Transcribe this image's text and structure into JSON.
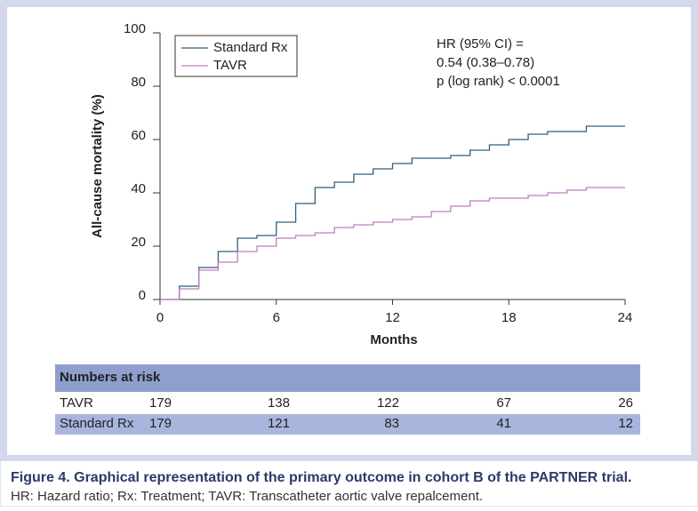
{
  "chart_data": {
    "type": "step",
    "y_label": "All-cause mortality (%)",
    "x_label": "Months",
    "x": [
      0,
      1,
      2,
      3,
      4,
      5,
      6,
      7,
      8,
      9,
      10,
      11,
      12,
      13,
      14,
      15,
      16,
      17,
      18,
      19,
      20,
      21,
      22,
      23,
      24
    ],
    "series": [
      {
        "name": "Standard Rx",
        "color": "#2f5f80",
        "values": [
          0,
          5,
          12,
          18,
          23,
          24,
          29,
          36,
          42,
          44,
          47,
          49,
          51,
          53,
          53,
          54,
          56,
          58,
          60,
          62,
          63,
          63,
          65,
          65,
          65
        ]
      },
      {
        "name": "TAVR",
        "color": "#c27cbc",
        "values": [
          0,
          4,
          11,
          14,
          18,
          20,
          23,
          24,
          25,
          27,
          28,
          29,
          30,
          31,
          33,
          35,
          37,
          38,
          38,
          39,
          40,
          41,
          42,
          42,
          42
        ]
      }
    ],
    "xlim": [
      0,
      24
    ],
    "xticks": [
      0,
      6,
      12,
      18,
      24
    ],
    "ylim": [
      0,
      100
    ],
    "yticks": [
      0,
      20,
      40,
      60,
      80,
      100
    ],
    "annotation": [
      "HR (95% CI) =",
      "0.54 (0.38–0.78)",
      "p (log rank) < 0.0001"
    ],
    "risk_table": {
      "title": "Numbers at risk",
      "rows": [
        {
          "label": "TAVR",
          "values": [
            "179",
            "138",
            "122",
            "67",
            "26"
          ]
        },
        {
          "label": "Standard Rx",
          "values": [
            "179",
            "121",
            "83",
            "41",
            "12"
          ]
        }
      ]
    },
    "caption": {
      "title": "Figure 4. Graphical representation of the primary outcome in cohort B of the PARTNER trial.",
      "text": "HR: Hazard ratio; Rx: Treatment; TAVR: Transcatheter aortic valve repalcement."
    }
  }
}
